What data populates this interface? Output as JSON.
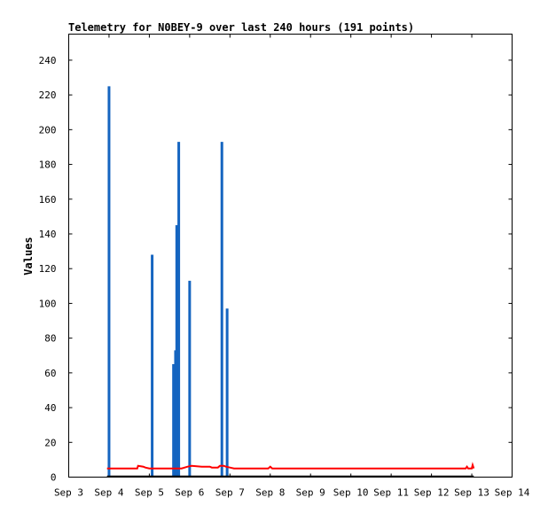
{
  "chart_data": {
    "type": "bar",
    "title": "Telemetry for N0BEY-9 over last 240 hours (191 points)",
    "xlabel": "",
    "ylabel": "Values",
    "xlim": [
      0,
      11
    ],
    "ylim": [
      0,
      255
    ],
    "x_ticks": [
      {
        "pos": 0,
        "label": "Sep 3"
      },
      {
        "pos": 1,
        "label": "Sep 4"
      },
      {
        "pos": 2,
        "label": "Sep 5"
      },
      {
        "pos": 3,
        "label": "Sep 6"
      },
      {
        "pos": 4,
        "label": "Sep 7"
      },
      {
        "pos": 5,
        "label": "Sep 8"
      },
      {
        "pos": 6,
        "label": "Sep 9"
      },
      {
        "pos": 7,
        "label": "Sep 10"
      },
      {
        "pos": 8,
        "label": "Sep 11"
      },
      {
        "pos": 9,
        "label": "Sep 12"
      },
      {
        "pos": 10,
        "label": "Sep 13"
      },
      {
        "pos": 11,
        "label": "Sep 14"
      }
    ],
    "y_ticks": [
      0,
      20,
      40,
      60,
      80,
      100,
      120,
      140,
      160,
      180,
      200,
      220,
      240
    ],
    "grid": false,
    "legend": "none",
    "series": [
      {
        "color": "#1565c0",
        "style": "impulse",
        "points": [
          [
            1.0,
            225
          ],
          [
            2.07,
            128
          ],
          [
            2.6,
            65
          ],
          [
            2.65,
            73
          ],
          [
            2.68,
            145
          ],
          [
            2.73,
            193
          ],
          [
            3.0,
            113
          ],
          [
            3.8,
            193
          ],
          [
            3.93,
            97
          ]
        ]
      },
      {
        "color": "#ff0000",
        "style": "line",
        "points": [
          [
            0.95,
            5
          ],
          [
            1.7,
            5
          ],
          [
            1.72,
            6.5
          ],
          [
            1.85,
            6
          ],
          [
            1.9,
            5.5
          ],
          [
            2.0,
            5
          ],
          [
            2.8,
            5
          ],
          [
            2.95,
            6
          ],
          [
            3.05,
            6.5
          ],
          [
            3.3,
            6
          ],
          [
            3.5,
            6
          ],
          [
            3.55,
            5.5
          ],
          [
            3.7,
            5.5
          ],
          [
            3.75,
            6.5
          ],
          [
            3.85,
            6.5
          ],
          [
            3.9,
            6
          ],
          [
            4.0,
            5.5
          ],
          [
            4.1,
            5
          ],
          [
            4.95,
            5
          ],
          [
            5.0,
            6
          ],
          [
            5.05,
            5
          ],
          [
            9.85,
            5
          ],
          [
            9.88,
            6
          ],
          [
            9.91,
            5
          ],
          [
            10.0,
            5
          ],
          [
            10.02,
            7
          ],
          [
            10.05,
            5
          ]
        ]
      },
      {
        "color": "#000000",
        "style": "line",
        "points": [
          [
            0.95,
            0.4
          ],
          [
            10.05,
            0.4
          ]
        ]
      }
    ]
  }
}
